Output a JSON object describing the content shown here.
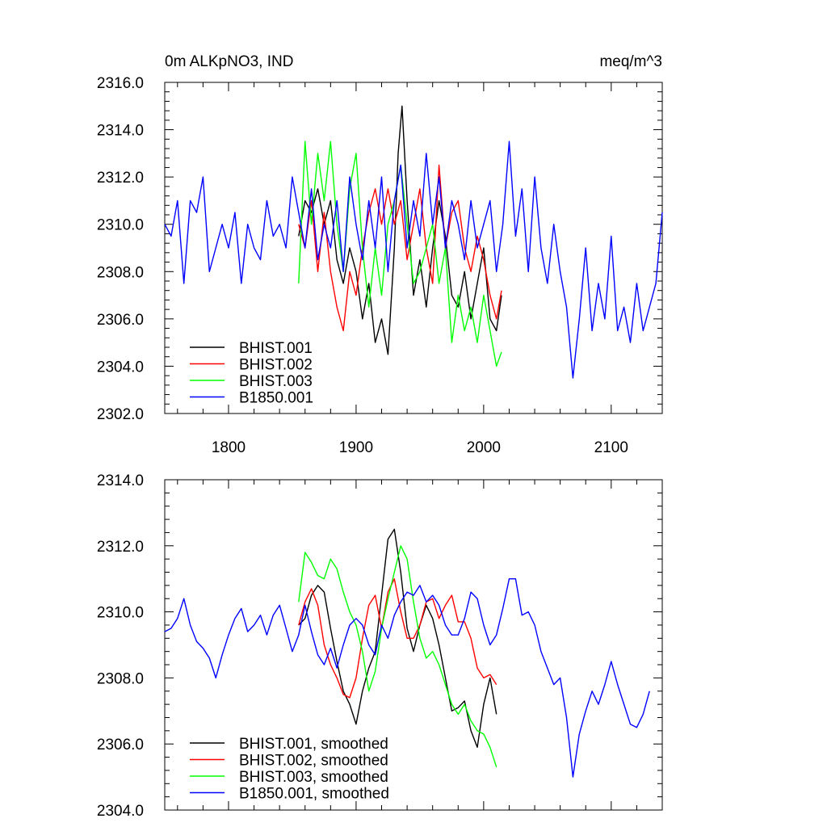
{
  "chart_data": [
    {
      "type": "line",
      "title_left": "0m ALKpNO3, IND",
      "title_right": "meq/m^3",
      "xlim": [
        1750,
        2140
      ],
      "ylim": [
        2302,
        2316
      ],
      "x_ticks": [
        1800,
        1900,
        2000,
        2100
      ],
      "x_tick_labels": [
        "1800",
        "1900",
        "2000",
        "2100"
      ],
      "y_ticks": [
        2302,
        2304,
        2306,
        2308,
        2310,
        2312,
        2314,
        2316
      ],
      "y_tick_labels": [
        "2302.0",
        "2304.0",
        "2306.0",
        "2308.0",
        "2310.0",
        "2312.0",
        "2314.0",
        "2316.0"
      ],
      "legend_position": "bottom-left",
      "series": [
        {
          "name": "BHIST.001",
          "color": "#000000",
          "x": [
            1855,
            1860,
            1865,
            1870,
            1875,
            1880,
            1885,
            1890,
            1895,
            1900,
            1905,
            1910,
            1915,
            1920,
            1925,
            1930,
            1933,
            1936,
            1940,
            1945,
            1950,
            1955,
            1960,
            1965,
            1970,
            1975,
            1980,
            1985,
            1990,
            1995,
            2000,
            2005,
            2010,
            2014
          ],
          "y": [
            2309.5,
            2311,
            2310.5,
            2311.5,
            2310,
            2311,
            2308.5,
            2307.5,
            2309,
            2308,
            2306,
            2307.5,
            2305,
            2306,
            2304.5,
            2309,
            2313,
            2315,
            2311,
            2307,
            2308.5,
            2306.5,
            2309,
            2311,
            2309.5,
            2307,
            2306.5,
            2308,
            2306,
            2307.5,
            2309,
            2306,
            2305.5,
            2307
          ]
        },
        {
          "name": "BHIST.002",
          "color": "#ff0000",
          "x": [
            1855,
            1860,
            1865,
            1870,
            1875,
            1880,
            1885,
            1890,
            1895,
            1900,
            1905,
            1910,
            1915,
            1920,
            1925,
            1930,
            1935,
            1940,
            1945,
            1950,
            1955,
            1960,
            1965,
            1970,
            1975,
            1980,
            1985,
            1990,
            1995,
            2000,
            2005,
            2010,
            2014
          ],
          "y": [
            2310,
            2309,
            2311,
            2308,
            2310.5,
            2308,
            2306.5,
            2305.5,
            2308,
            2307,
            2309,
            2310.5,
            2311.5,
            2310,
            2311.5,
            2310,
            2311,
            2308.5,
            2310,
            2311.5,
            2309,
            2307.5,
            2312.5,
            2309,
            2310.5,
            2311,
            2309,
            2308,
            2309.5,
            2308.5,
            2307,
            2306,
            2307.2
          ]
        },
        {
          "name": "BHIST.003",
          "color": "#00ff00",
          "x": [
            1855,
            1860,
            1865,
            1870,
            1875,
            1880,
            1885,
            1890,
            1895,
            1900,
            1905,
            1910,
            1915,
            1920,
            1925,
            1930,
            1935,
            1940,
            1945,
            1950,
            1955,
            1960,
            1965,
            1970,
            1975,
            1980,
            1985,
            1990,
            1995,
            2000,
            2005,
            2010,
            2014
          ],
          "y": [
            2307.5,
            2313.5,
            2310,
            2313,
            2311,
            2313.5,
            2310,
            2308,
            2311.5,
            2313,
            2309,
            2306.5,
            2309,
            2307,
            2310,
            2311,
            2312.5,
            2310,
            2307.5,
            2308,
            2309,
            2310,
            2307.5,
            2309,
            2305,
            2307,
            2305.5,
            2306.5,
            2305,
            2307,
            2305.5,
            2304,
            2304.6
          ]
        },
        {
          "name": "B1850.001",
          "color": "#0000ff",
          "x": [
            1750,
            1755,
            1760,
            1765,
            1770,
            1775,
            1780,
            1785,
            1790,
            1795,
            1800,
            1805,
            1810,
            1815,
            1820,
            1825,
            1830,
            1835,
            1840,
            1845,
            1850,
            1855,
            1860,
            1865,
            1870,
            1875,
            1880,
            1885,
            1890,
            1895,
            1900,
            1905,
            1910,
            1915,
            1920,
            1925,
            1930,
            1935,
            1940,
            1945,
            1950,
            1955,
            1960,
            1965,
            1970,
            1975,
            1980,
            1985,
            1990,
            1995,
            2000,
            2005,
            2010,
            2015,
            2020,
            2025,
            2030,
            2035,
            2040,
            2045,
            2050,
            2055,
            2060,
            2065,
            2070,
            2075,
            2080,
            2085,
            2090,
            2095,
            2100,
            2105,
            2110,
            2115,
            2120,
            2125,
            2130,
            2135,
            2140
          ],
          "y": [
            2310,
            2309.5,
            2311,
            2307.5,
            2311,
            2310.5,
            2312,
            2308,
            2309,
            2310,
            2309,
            2310.5,
            2307.5,
            2310,
            2309,
            2308.5,
            2311,
            2309.5,
            2310,
            2309,
            2312,
            2310.5,
            2309,
            2311.5,
            2308.5,
            2310,
            2309,
            2311,
            2308,
            2312,
            2310,
            2308.5,
            2311,
            2309,
            2312,
            2308,
            2311,
            2312.5,
            2309,
            2311,
            2309.5,
            2313,
            2310,
            2312,
            2309,
            2311,
            2310,
            2308.5,
            2311,
            2309,
            2310,
            2311,
            2308,
            2310,
            2313.5,
            2309.5,
            2311.5,
            2308,
            2312,
            2309,
            2307.5,
            2310,
            2308,
            2306.5,
            2303.5,
            2306,
            2309,
            2305.5,
            2307.5,
            2306,
            2309.5,
            2305.5,
            2306.5,
            2305,
            2307.5,
            2305.5,
            2306.5,
            2307.5,
            2310.5
          ]
        }
      ]
    },
    {
      "type": "line",
      "xlim": [
        1750,
        2140
      ],
      "ylim": [
        2304,
        2314
      ],
      "x_ticks": [
        1800,
        1900,
        2000,
        2100
      ],
      "y_ticks": [
        2304,
        2306,
        2308,
        2310,
        2312,
        2314
      ],
      "y_tick_labels": [
        "2304.0",
        "2306.0",
        "2308.0",
        "2310.0",
        "2312.0",
        "2314.0"
      ],
      "legend_position": "bottom-left",
      "series": [
        {
          "name": "BHIST.001, smoothed",
          "color": "#000000",
          "x": [
            1855,
            1860,
            1865,
            1870,
            1875,
            1880,
            1885,
            1890,
            1895,
            1900,
            1905,
            1910,
            1915,
            1920,
            1925,
            1930,
            1935,
            1940,
            1945,
            1950,
            1955,
            1960,
            1965,
            1970,
            1975,
            1980,
            1985,
            1990,
            1995,
            2000,
            2005,
            2010
          ],
          "y": [
            2309.6,
            2309.8,
            2310.5,
            2310.8,
            2310.6,
            2309.5,
            2308.5,
            2307.6,
            2307.2,
            2306.6,
            2307.6,
            2308.3,
            2308.8,
            2310.5,
            2312.2,
            2312.5,
            2311.2,
            2309.5,
            2308.8,
            2309.6,
            2310.2,
            2309.8,
            2309,
            2308,
            2307,
            2307.1,
            2307.3,
            2306.4,
            2305.9,
            2307.2,
            2308,
            2306.9
          ]
        },
        {
          "name": "BHIST.002, smoothed",
          "color": "#ff0000",
          "x": [
            1855,
            1860,
            1865,
            1870,
            1875,
            1880,
            1885,
            1890,
            1895,
            1900,
            1905,
            1910,
            1915,
            1920,
            1925,
            1930,
            1935,
            1940,
            1945,
            1950,
            1955,
            1960,
            1965,
            1970,
            1975,
            1980,
            1985,
            1990,
            1995,
            2000,
            2005,
            2010
          ],
          "y": [
            2309.6,
            2310.3,
            2310.7,
            2310.2,
            2309,
            2308.4,
            2308,
            2307.5,
            2307.4,
            2308,
            2309.2,
            2310.2,
            2310.5,
            2309.5,
            2310.6,
            2311,
            2310,
            2309.2,
            2309.2,
            2309.6,
            2310.3,
            2310.4,
            2309.8,
            2310.2,
            2310.5,
            2309.7,
            2309.7,
            2309.2,
            2308.3,
            2308,
            2308.1,
            2307.8
          ]
        },
        {
          "name": "BHIST.003, smoothed",
          "color": "#00ff00",
          "x": [
            1855,
            1860,
            1865,
            1870,
            1875,
            1880,
            1885,
            1890,
            1895,
            1900,
            1905,
            1910,
            1915,
            1920,
            1925,
            1930,
            1935,
            1940,
            1945,
            1950,
            1955,
            1960,
            1965,
            1970,
            1975,
            1980,
            1985,
            1990,
            1995,
            2000,
            2005,
            2010
          ],
          "y": [
            2310.3,
            2311.8,
            2311.5,
            2311.1,
            2311,
            2311.6,
            2311.3,
            2310.6,
            2310,
            2309.6,
            2308.8,
            2307.6,
            2308.2,
            2309.5,
            2310.4,
            2311.2,
            2312,
            2311.6,
            2310.3,
            2309.2,
            2308.6,
            2308.8,
            2308.4,
            2307.8,
            2307.2,
            2306.9,
            2307.2,
            2306.7,
            2306.4,
            2306.3,
            2305.9,
            2305.3
          ]
        },
        {
          "name": "B1850.001, smoothed",
          "color": "#0000ff",
          "x": [
            1750,
            1755,
            1760,
            1765,
            1770,
            1775,
            1780,
            1785,
            1790,
            1795,
            1800,
            1805,
            1810,
            1815,
            1820,
            1825,
            1830,
            1835,
            1840,
            1845,
            1850,
            1855,
            1860,
            1865,
            1870,
            1875,
            1880,
            1885,
            1890,
            1895,
            1900,
            1905,
            1910,
            1915,
            1920,
            1925,
            1930,
            1935,
            1940,
            1945,
            1950,
            1955,
            1960,
            1965,
            1970,
            1975,
            1980,
            1985,
            1990,
            1995,
            2000,
            2005,
            2010,
            2015,
            2020,
            2025,
            2030,
            2035,
            2040,
            2045,
            2050,
            2055,
            2060,
            2065,
            2070,
            2075,
            2080,
            2085,
            2090,
            2095,
            2100,
            2105,
            2110,
            2115,
            2120,
            2125,
            2130
          ],
          "y": [
            2309.4,
            2309.5,
            2309.8,
            2310.4,
            2309.6,
            2309.1,
            2308.9,
            2308.6,
            2308,
            2308.7,
            2309.3,
            2309.8,
            2310.1,
            2309.4,
            2309.6,
            2309.9,
            2309.3,
            2309.9,
            2310.2,
            2309.5,
            2308.8,
            2309.3,
            2310.2,
            2309.4,
            2308.7,
            2308.4,
            2308.9,
            2308.3,
            2309,
            2309.6,
            2309.8,
            2309.6,
            2309,
            2308.7,
            2309.6,
            2309.2,
            2309.9,
            2310.3,
            2310.6,
            2310.5,
            2310.8,
            2310.3,
            2310.5,
            2310.2,
            2309.6,
            2309.3,
            2309.3,
            2309.8,
            2310.6,
            2310.4,
            2309.6,
            2309,
            2309.3,
            2310.1,
            2311,
            2311,
            2309.9,
            2310,
            2309.6,
            2308.8,
            2308.3,
            2307.8,
            2308,
            2306.8,
            2305,
            2306.3,
            2307,
            2307.6,
            2307.2,
            2307.8,
            2308.5,
            2307.8,
            2307.2,
            2306.6,
            2306.5,
            2306.9,
            2307.6
          ]
        }
      ]
    }
  ]
}
